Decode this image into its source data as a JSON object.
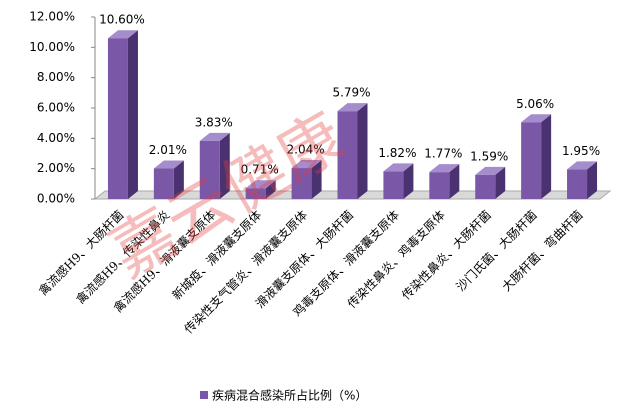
{
  "chart_data": {
    "type": "bar3d",
    "watermark": "嘉云健康",
    "categories": [
      "禽流感H9、大肠杆菌",
      "禽流感H9、传染性鼻炎",
      "禽流感H9、滑液囊支原体",
      "新城疫、滑液囊支原体",
      "传染性支气管炎、滑液囊支原体",
      "滑液囊支原体、大肠杆菌",
      "鸡毒支原体、滑液囊支原体",
      "传染性鼻炎、鸡毒支原体",
      "传染性鼻炎、大肠杆菌",
      "沙门氏菌、大肠杆菌",
      "大肠杆菌、弯曲杆菌"
    ],
    "series": [
      {
        "name": "疾病混合感染所占比例（%）",
        "color": "#7b57a8",
        "values": [
          10.6,
          2.01,
          3.83,
          0.71,
          2.04,
          5.79,
          1.82,
          1.77,
          1.59,
          5.06,
          1.95
        ],
        "value_labels": [
          "10.60%",
          "2.01%",
          "3.83%",
          "0.71%",
          "2.04%",
          "5.79%",
          "1.82%",
          "1.77%",
          "1.59%",
          "5.06%",
          "1.95%"
        ]
      }
    ],
    "ylim": [
      0,
      12
    ],
    "yticks": [
      {
        "value": 0,
        "label": "0.00%"
      },
      {
        "value": 2,
        "label": "2.00%"
      },
      {
        "value": 4,
        "label": "4.00%"
      },
      {
        "value": 6,
        "label": "6.00%"
      },
      {
        "value": 8,
        "label": "8.00%"
      },
      {
        "value": 10,
        "label": "10.00%"
      },
      {
        "value": 12,
        "label": "12.00%"
      }
    ],
    "legend": "bottom"
  }
}
